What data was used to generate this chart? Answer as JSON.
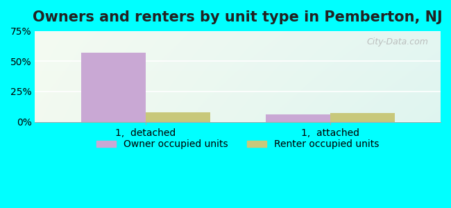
{
  "title": "Owners and renters by unit type in Pemberton, NJ",
  "categories": [
    "1,  detached",
    "1,  attached"
  ],
  "owner_values": [
    57,
    6
  ],
  "renter_values": [
    8,
    7
  ],
  "owner_color": "#c9a8d4",
  "renter_color": "#c8c87a",
  "ylim": [
    0,
    75
  ],
  "yticks": [
    0,
    25,
    50,
    75
  ],
  "yticklabels": [
    "0%",
    "25%",
    "50%",
    "75%"
  ],
  "bar_width": 0.35,
  "outer_background": "#00ffff",
  "watermark": "City-Data.com",
  "legend_owner": "Owner occupied units",
  "legend_renter": "Renter occupied units",
  "title_fontsize": 15,
  "tick_fontsize": 10,
  "legend_fontsize": 10
}
